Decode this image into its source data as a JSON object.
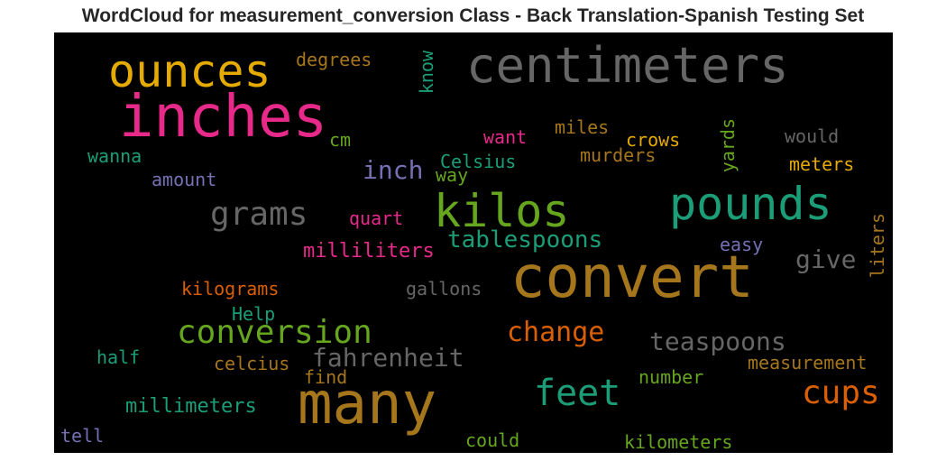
{
  "title": "WordCloud for measurement_conversion Class - Back Translation-Spanish Testing Set",
  "background": "#000000",
  "words": [
    {
      "text": "ounces",
      "color": "#e6ab02",
      "orientation": "horizontal"
    },
    {
      "text": "centimeters",
      "color": "#666666",
      "orientation": "horizontal"
    },
    {
      "text": "degrees",
      "color": "#a6761d",
      "orientation": "horizontal"
    },
    {
      "text": "know",
      "color": "#1b9e77",
      "orientation": "vertical"
    },
    {
      "text": "inches",
      "color": "#e7298a",
      "orientation": "horizontal"
    },
    {
      "text": "miles",
      "color": "#a6761d",
      "orientation": "horizontal"
    },
    {
      "text": "yards",
      "color": "#66a61e",
      "orientation": "vertical"
    },
    {
      "text": "would",
      "color": "#666666",
      "orientation": "horizontal"
    },
    {
      "text": "want",
      "color": "#e7298a",
      "orientation": "horizontal"
    },
    {
      "text": "crows",
      "color": "#e6ab02",
      "orientation": "horizontal"
    },
    {
      "text": "cm",
      "color": "#66a61e",
      "orientation": "horizontal"
    },
    {
      "text": "wanna",
      "color": "#1b9e77",
      "orientation": "horizontal"
    },
    {
      "text": "Celsius",
      "color": "#1b9e77",
      "orientation": "horizontal"
    },
    {
      "text": "murders",
      "color": "#a6761d",
      "orientation": "horizontal"
    },
    {
      "text": "inch",
      "color": "#7570b3",
      "orientation": "horizontal"
    },
    {
      "text": "way",
      "color": "#66a61e",
      "orientation": "horizontal"
    },
    {
      "text": "meters",
      "color": "#e6ab02",
      "orientation": "horizontal"
    },
    {
      "text": "amount",
      "color": "#7570b3",
      "orientation": "horizontal"
    },
    {
      "text": "kilos",
      "color": "#66a61e",
      "orientation": "horizontal"
    },
    {
      "text": "pounds",
      "color": "#1b9e77",
      "orientation": "horizontal"
    },
    {
      "text": "grams",
      "color": "#666666",
      "orientation": "horizontal"
    },
    {
      "text": "quart",
      "color": "#e7298a",
      "orientation": "horizontal"
    },
    {
      "text": "liters",
      "color": "#a6761d",
      "orientation": "vertical"
    },
    {
      "text": "tablespoons",
      "color": "#1b9e77",
      "orientation": "horizontal"
    },
    {
      "text": "easy",
      "color": "#7570b3",
      "orientation": "horizontal"
    },
    {
      "text": "milliliters",
      "color": "#e7298a",
      "orientation": "horizontal"
    },
    {
      "text": "give",
      "color": "#666666",
      "orientation": "horizontal"
    },
    {
      "text": "convert",
      "color": "#a6761d",
      "orientation": "horizontal"
    },
    {
      "text": "kilograms",
      "color": "#d95f02",
      "orientation": "horizontal"
    },
    {
      "text": "gallons",
      "color": "#666666",
      "orientation": "horizontal"
    },
    {
      "text": "Help",
      "color": "#1b9e77",
      "orientation": "horizontal"
    },
    {
      "text": "conversion",
      "color": "#66a61e",
      "orientation": "horizontal"
    },
    {
      "text": "change",
      "color": "#d95f02",
      "orientation": "horizontal"
    },
    {
      "text": "teaspoons",
      "color": "#666666",
      "orientation": "horizontal"
    },
    {
      "text": "fahrenheit",
      "color": "#666666",
      "orientation": "horizontal"
    },
    {
      "text": "half",
      "color": "#1b9e77",
      "orientation": "horizontal"
    },
    {
      "text": "celcius",
      "color": "#a6761d",
      "orientation": "horizontal"
    },
    {
      "text": "find",
      "color": "#a6761d",
      "orientation": "horizontal"
    },
    {
      "text": "measurement",
      "color": "#a6761d",
      "orientation": "horizontal"
    },
    {
      "text": "number",
      "color": "#66a61e",
      "orientation": "horizontal"
    },
    {
      "text": "many",
      "color": "#a6761d",
      "orientation": "horizontal"
    },
    {
      "text": "feet",
      "color": "#1b9e77",
      "orientation": "horizontal"
    },
    {
      "text": "cups",
      "color": "#d95f02",
      "orientation": "horizontal"
    },
    {
      "text": "millimeters",
      "color": "#1b9e77",
      "orientation": "horizontal"
    },
    {
      "text": "tell",
      "color": "#7570b3",
      "orientation": "horizontal"
    },
    {
      "text": "could",
      "color": "#66a61e",
      "orientation": "horizontal"
    },
    {
      "text": "kilometers",
      "color": "#66a61e",
      "orientation": "horizontal"
    }
  ]
}
